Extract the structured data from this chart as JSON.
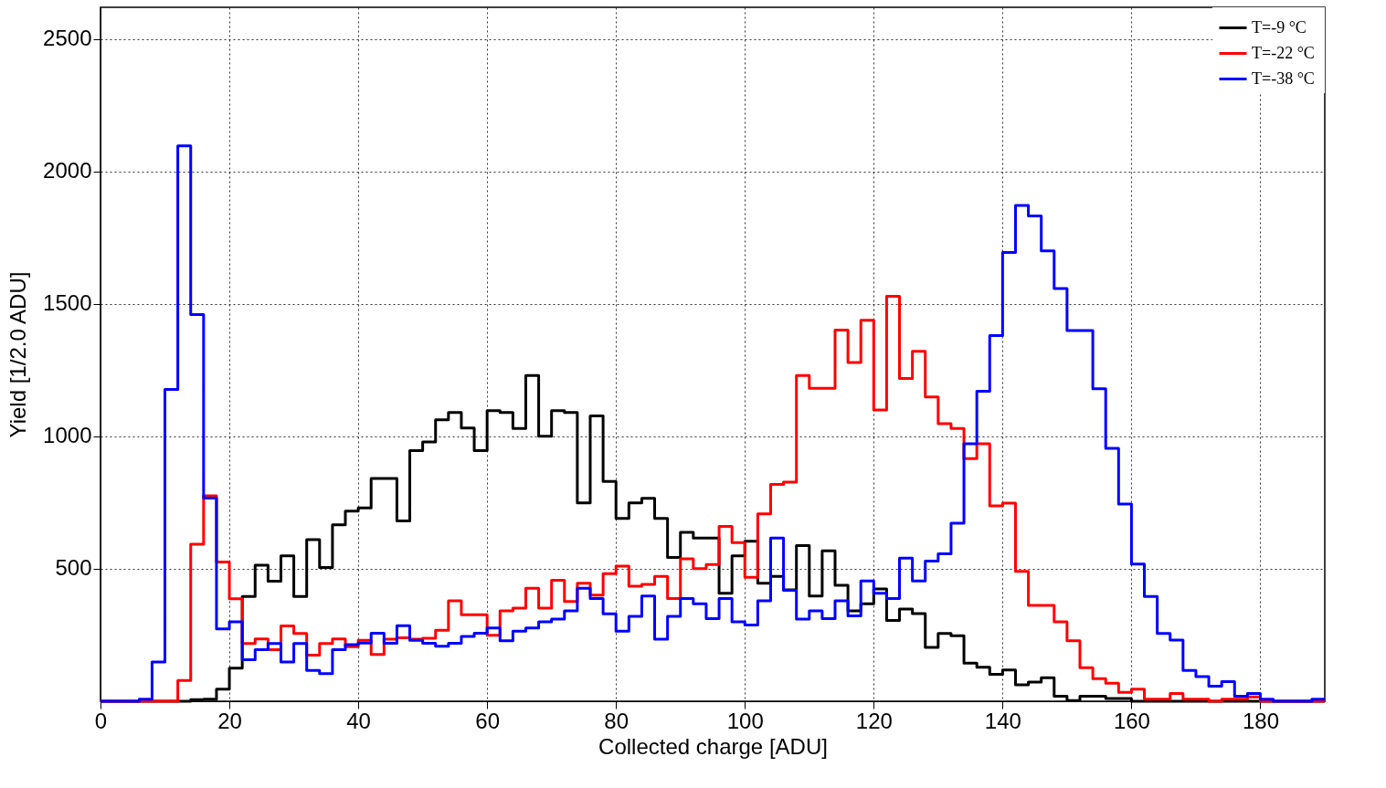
{
  "chart_data": {
    "type": "histogram",
    "xlabel": "Collected charge [ADU]",
    "ylabel": "Yield [1/2.0 ADU]",
    "bins": [
      0,
      2,
      4,
      6,
      8,
      10,
      12,
      14,
      16,
      18,
      20,
      22,
      24,
      26,
      28,
      30,
      32,
      34,
      36,
      38,
      40,
      42,
      44,
      46,
      48,
      50,
      52,
      54,
      56,
      58,
      60,
      62,
      64,
      66,
      68,
      70,
      72,
      74,
      76,
      78,
      80,
      82,
      84,
      86,
      88,
      90,
      92,
      94,
      96,
      98,
      100,
      102,
      104,
      106,
      108,
      110,
      112,
      114,
      116,
      118,
      120,
      122,
      124,
      126,
      128,
      130,
      132,
      134,
      136,
      138,
      140,
      142,
      144,
      146,
      148,
      150,
      152,
      154,
      156,
      158,
      160,
      162,
      164,
      166,
      168,
      170,
      172,
      174,
      176,
      178,
      180,
      182,
      184,
      186,
      188,
      190
    ],
    "series": [
      {
        "name": "T=-9  °C",
        "color": "#000000",
        "values": [
          0,
          0,
          0,
          0,
          0,
          0,
          0,
          6,
          8,
          46,
          125,
          396,
          514,
          453,
          549,
          396,
          610,
          505,
          666,
          718,
          730,
          841,
          841,
          681,
          946,
          979,
          1063,
          1090,
          1032,
          946,
          1097,
          1090,
          1030,
          1230,
          1001,
          1097,
          1090,
          749,
          1077,
          830,
          690,
          749,
          766,
          690,
          543,
          638,
          616,
          616,
          408,
          549,
          604,
          446,
          471,
          421,
          588,
          397,
          568,
          438,
          341,
          368,
          424,
          305,
          348,
          331,
          203,
          256,
          247,
          144,
          128,
          102,
          118,
          62,
          72,
          89,
          19,
          3,
          19,
          19,
          10,
          10,
          0,
          0,
          0,
          0,
          0,
          0,
          0,
          0,
          0,
          0,
          0,
          0,
          0,
          0,
          0
        ]
      },
      {
        "name": "T=-22  °C",
        "color": "#ff0000",
        "values": [
          0,
          0,
          0,
          0,
          0,
          0,
          78,
          593,
          776,
          526,
          387,
          218,
          235,
          195,
          284,
          256,
          174,
          218,
          235,
          206,
          230,
          177,
          234,
          240,
          234,
          238,
          268,
          379,
          327,
          327,
          249,
          341,
          352,
          427,
          352,
          457,
          377,
          446,
          401,
          482,
          510,
          434,
          441,
          471,
          388,
          538,
          501,
          516,
          660,
          599,
          468,
          708,
          819,
          827,
          1230,
          1182,
          1182,
          1401,
          1279,
          1438,
          1100,
          1529,
          1219,
          1321,
          1149,
          1048,
          1030,
          916,
          972,
          738,
          748,
          490,
          362,
          362,
          300,
          228,
          127,
          85,
          68,
          34,
          46,
          8,
          8,
          29,
          8,
          8,
          0,
          8,
          8,
          16,
          0,
          0,
          0,
          0,
          0
        ]
      },
      {
        "name": "T=-38  °C",
        "color": "#0000ff",
        "values": [
          0,
          0,
          0,
          8,
          148,
          1177,
          2097,
          1460,
          767,
          273,
          300,
          157,
          195,
          218,
          148,
          218,
          116,
          104,
          195,
          214,
          220,
          257,
          219,
          285,
          230,
          219,
          208,
          219,
          245,
          257,
          277,
          228,
          265,
          277,
          300,
          310,
          341,
          427,
          388,
          330,
          265,
          321,
          397,
          234,
          321,
          388,
          368,
          312,
          388,
          300,
          288,
          379,
          616,
          419,
          310,
          341,
          312,
          379,
          322,
          454,
          408,
          388,
          540,
          454,
          529,
          557,
          672,
          972,
          1170,
          1381,
          1694,
          1872,
          1832,
          1700,
          1558,
          1400,
          1400,
          1180,
          955,
          745,
          518,
          396,
          256,
          231,
          116,
          93,
          57,
          74,
          19,
          29,
          8,
          0,
          0,
          0,
          8
        ]
      }
    ],
    "xlim": [
      0,
      190
    ],
    "xticks": [
      0,
      20,
      40,
      60,
      80,
      100,
      120,
      140,
      160,
      180
    ],
    "ylim": [
      0,
      2620
    ],
    "yticks": [
      500,
      1000,
      1500,
      2000,
      2500
    ],
    "grid": true,
    "legend": "top right"
  }
}
